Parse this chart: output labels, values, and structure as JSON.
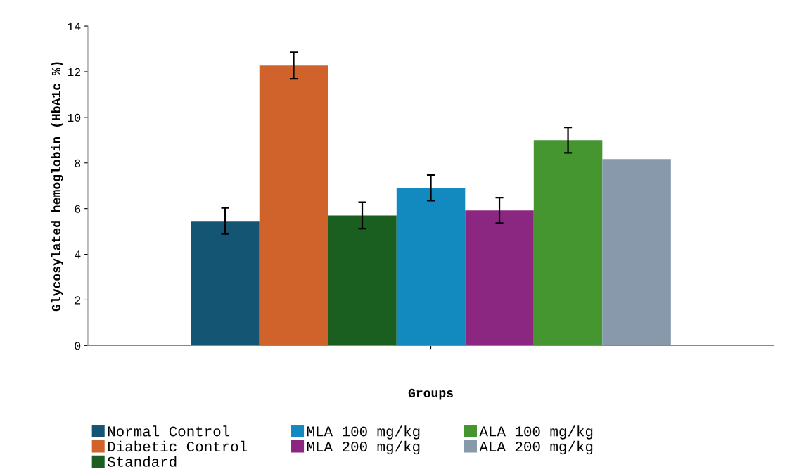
{
  "chart_data": {
    "type": "bar",
    "xlabel": "Groups",
    "ylabel": "Glycosylated hemoglobin (HbA1c %)",
    "categories": [
      null
    ],
    "series": [
      {
        "name": "Normal Control",
        "color": "#135572",
        "values": [
          5.46
        ],
        "errors": [
          0.57
        ]
      },
      {
        "name": "Diabetic Control",
        "color": "#d0632b",
        "values": [
          12.27
        ],
        "errors": [
          0.58
        ]
      },
      {
        "name": "Standard",
        "color": "#1a5e20",
        "values": [
          5.7
        ],
        "errors": [
          0.58
        ]
      },
      {
        "name": "MLA 100 mg/kg",
        "color": "#128ac0",
        "values": [
          6.91
        ],
        "errors": [
          0.56
        ]
      },
      {
        "name": "MLA 200 mg/kg",
        "color": "#8b2781",
        "values": [
          5.92
        ],
        "errors": [
          0.56
        ]
      },
      {
        "name": "ALA 100 mg/kg",
        "color": "#459530",
        "values": [
          9.0
        ],
        "errors": [
          0.56
        ]
      },
      {
        "name": "ALA 200 mg/kg",
        "color": "#8799aa",
        "values": [
          8.17
        ]
      }
    ],
    "ylim": [
      0,
      14
    ],
    "yticks": [
      0,
      2,
      4,
      6,
      8,
      10,
      12,
      14
    ],
    "grid": false,
    "legend": "bottom",
    "tick_labels": "y"
  }
}
